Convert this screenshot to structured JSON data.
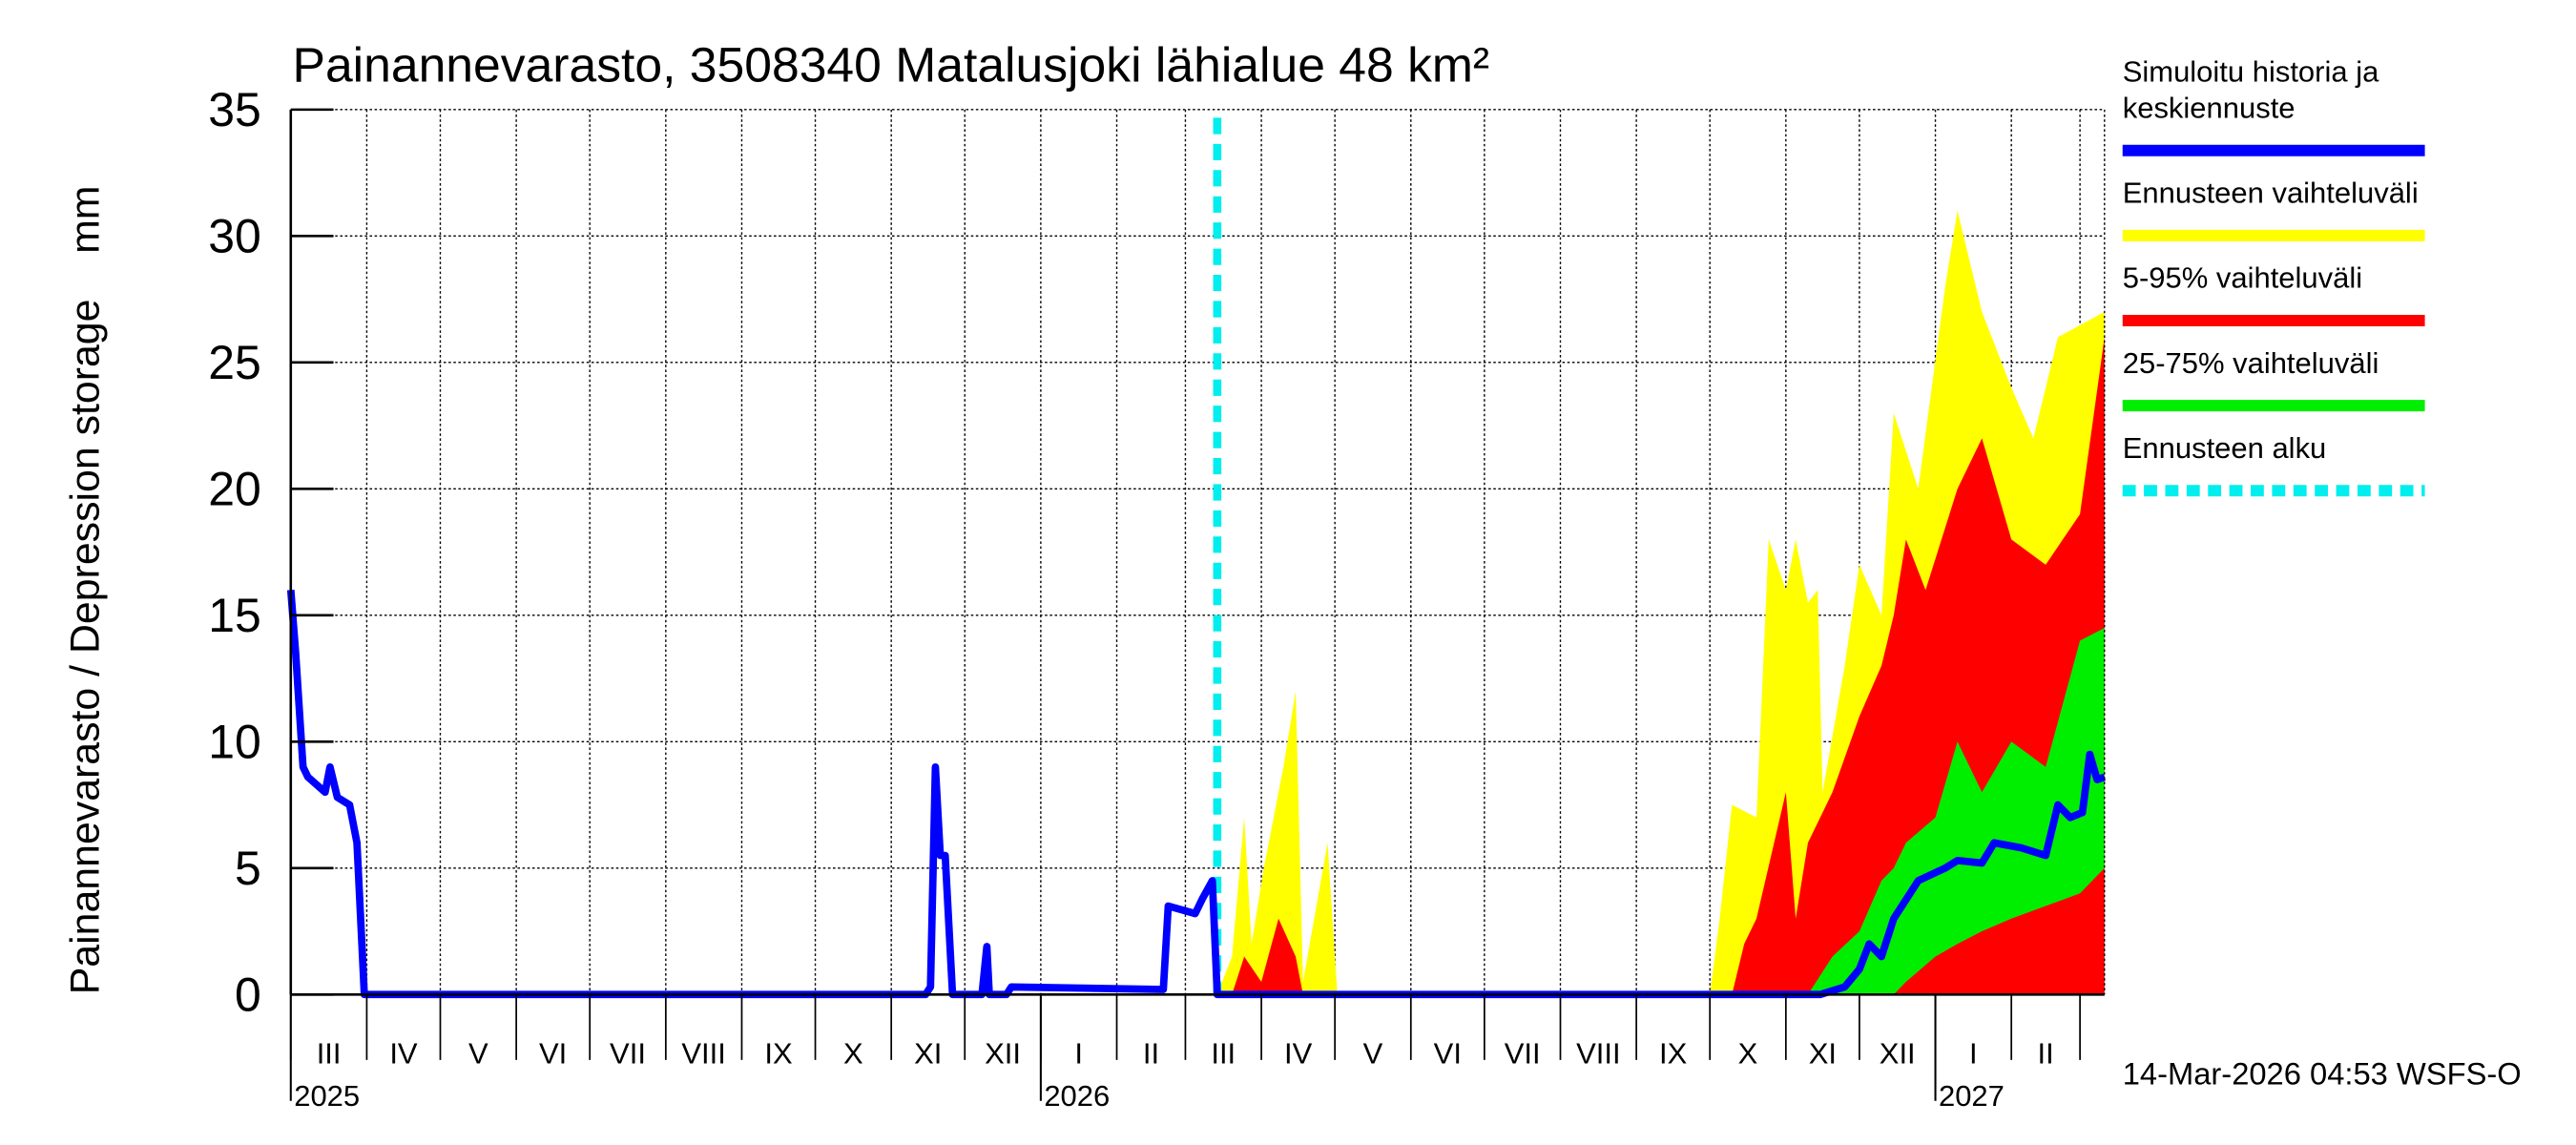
{
  "chart_data": {
    "type": "area",
    "title": "Painannevarasto, 3508340 Matalusjoki lähialue 48 km²",
    "ylabel": "Painannevarasto / Depression storage    mm",
    "ylim": [
      0,
      35
    ],
    "yticks": [
      0,
      5,
      10,
      15,
      20,
      25,
      30,
      35
    ],
    "xlim": [
      "2025-03-01",
      "2027-03-11"
    ],
    "grid": true,
    "legend_position": "right",
    "month_ticks": [
      {
        "date": "2025-03-01",
        "label": "III"
      },
      {
        "date": "2025-04-01",
        "label": "IV"
      },
      {
        "date": "2025-05-01",
        "label": "V"
      },
      {
        "date": "2025-06-01",
        "label": "VI"
      },
      {
        "date": "2025-07-01",
        "label": "VII"
      },
      {
        "date": "2025-08-01",
        "label": "VIII"
      },
      {
        "date": "2025-09-01",
        "label": "IX"
      },
      {
        "date": "2025-10-01",
        "label": "X"
      },
      {
        "date": "2025-11-01",
        "label": "XI"
      },
      {
        "date": "2025-12-01",
        "label": "XII"
      },
      {
        "date": "2026-01-01",
        "label": "I"
      },
      {
        "date": "2026-02-01",
        "label": "II"
      },
      {
        "date": "2026-03-01",
        "label": "III"
      },
      {
        "date": "2026-04-01",
        "label": "IV"
      },
      {
        "date": "2026-05-01",
        "label": "V"
      },
      {
        "date": "2026-06-01",
        "label": "VI"
      },
      {
        "date": "2026-07-01",
        "label": "VII"
      },
      {
        "date": "2026-08-01",
        "label": "VIII"
      },
      {
        "date": "2026-09-01",
        "label": "IX"
      },
      {
        "date": "2026-10-01",
        "label": "X"
      },
      {
        "date": "2026-11-01",
        "label": "XI"
      },
      {
        "date": "2026-12-01",
        "label": "XII"
      },
      {
        "date": "2027-01-01",
        "label": "I"
      },
      {
        "date": "2027-02-01",
        "label": "II"
      },
      {
        "date": "2027-03-01",
        "label": ""
      }
    ],
    "year_labels": [
      {
        "date": "2025-03-01",
        "label": "2025"
      },
      {
        "date": "2026-01-01",
        "label": "2026"
      },
      {
        "date": "2027-01-01",
        "label": "2027"
      }
    ],
    "forecast_start": "2026-03-14",
    "colors": {
      "median": "#0000ff",
      "range": "#ffff00",
      "p5_95": "#ff0000",
      "p25_75": "#00ee00",
      "forecast_start": "#00eeee"
    },
    "series": [
      {
        "name": "Ennusteen vaihteluväli",
        "kind": "band",
        "color": "#ffff00",
        "points": [
          [
            "2026-03-14",
            0,
            0
          ],
          [
            "2026-03-20",
            0,
            1.5
          ],
          [
            "2026-03-25",
            0,
            7
          ],
          [
            "2026-03-28",
            0,
            2
          ],
          [
            "2026-04-02",
            0,
            5
          ],
          [
            "2026-04-10",
            0,
            9
          ],
          [
            "2026-04-15",
            0,
            12
          ],
          [
            "2026-04-18",
            0,
            0.5
          ],
          [
            "2026-04-28",
            0,
            6
          ],
          [
            "2026-05-02",
            0,
            0
          ],
          [
            "2026-10-01",
            0,
            0
          ],
          [
            "2026-10-05",
            0,
            3
          ],
          [
            "2026-10-10",
            0,
            7.5
          ],
          [
            "2026-10-20",
            0,
            7
          ],
          [
            "2026-10-25",
            0,
            18
          ],
          [
            "2026-11-01",
            0,
            16
          ],
          [
            "2026-11-05",
            0,
            18
          ],
          [
            "2026-11-10",
            0,
            15.5
          ],
          [
            "2026-11-14",
            0,
            16
          ],
          [
            "2026-11-16",
            0,
            8
          ],
          [
            "2026-11-25",
            0,
            13
          ],
          [
            "2026-12-01",
            0,
            17
          ],
          [
            "2026-12-10",
            0,
            15
          ],
          [
            "2026-12-15",
            0,
            23
          ],
          [
            "2026-12-25",
            0,
            20
          ],
          [
            "2027-01-05",
            0,
            28
          ],
          [
            "2027-01-10",
            0,
            31
          ],
          [
            "2027-01-20",
            0,
            27
          ],
          [
            "2027-02-01",
            0,
            24
          ],
          [
            "2027-02-10",
            0,
            22
          ],
          [
            "2027-02-20",
            0,
            26
          ],
          [
            "2027-03-11",
            0,
            27
          ]
        ]
      },
      {
        "name": "5-95% vaihteluväli",
        "kind": "band",
        "color": "#ff0000",
        "points": [
          [
            "2026-03-20",
            0,
            0
          ],
          [
            "2026-03-25",
            0,
            1.5
          ],
          [
            "2026-04-01",
            0,
            0.5
          ],
          [
            "2026-04-08",
            0,
            3
          ],
          [
            "2026-04-15",
            0,
            1.5
          ],
          [
            "2026-04-18",
            0,
            0
          ],
          [
            "2026-10-10",
            0,
            0
          ],
          [
            "2026-10-15",
            0,
            2
          ],
          [
            "2026-10-20",
            0,
            3
          ],
          [
            "2026-11-01",
            0,
            8
          ],
          [
            "2026-11-05",
            0,
            3
          ],
          [
            "2026-11-10",
            0,
            6
          ],
          [
            "2026-11-20",
            0,
            8
          ],
          [
            "2026-12-01",
            0,
            11
          ],
          [
            "2026-12-10",
            0,
            13
          ],
          [
            "2026-12-15",
            0,
            15
          ],
          [
            "2026-12-20",
            0,
            18
          ],
          [
            "2026-12-28",
            0,
            16
          ],
          [
            "2027-01-10",
            0,
            20
          ],
          [
            "2027-01-20",
            0,
            22
          ],
          [
            "2027-02-01",
            0,
            18
          ],
          [
            "2027-02-15",
            0,
            17
          ],
          [
            "2027-03-01",
            0,
            19
          ],
          [
            "2027-03-11",
            0,
            26
          ]
        ]
      },
      {
        "name": "25-75% vaihteluväli",
        "kind": "band",
        "color": "#00ee00",
        "points": [
          [
            "2026-11-10",
            0,
            0
          ],
          [
            "2026-11-20",
            0,
            1.5
          ],
          [
            "2026-12-01",
            0,
            2.5
          ],
          [
            "2026-12-10",
            0,
            4.5
          ],
          [
            "2026-12-15",
            0,
            5
          ],
          [
            "2026-12-20",
            0.5,
            6
          ],
          [
            "2027-01-01",
            1.5,
            7
          ],
          [
            "2027-01-10",
            2,
            10
          ],
          [
            "2027-01-20",
            2.5,
            8
          ],
          [
            "2027-02-01",
            3,
            10
          ],
          [
            "2027-02-15",
            3.5,
            9
          ],
          [
            "2027-03-01",
            4,
            14
          ],
          [
            "2027-03-11",
            5,
            14.5
          ]
        ]
      },
      {
        "name": "Simuloitu historia ja keskiennuste",
        "kind": "line",
        "color": "#0000ff",
        "points": [
          [
            "2025-03-01",
            16
          ],
          [
            "2025-03-03",
            13.5
          ],
          [
            "2025-03-06",
            9
          ],
          [
            "2025-03-08",
            8.6
          ],
          [
            "2025-03-15",
            8
          ],
          [
            "2025-03-17",
            9
          ],
          [
            "2025-03-20",
            7.8
          ],
          [
            "2025-03-25",
            7.5
          ],
          [
            "2025-03-28",
            6
          ],
          [
            "2025-03-31",
            0
          ],
          [
            "2025-11-15",
            0
          ],
          [
            "2025-11-17",
            0.3
          ],
          [
            "2025-11-19",
            9
          ],
          [
            "2025-11-21",
            5.5
          ],
          [
            "2025-11-23",
            5.5
          ],
          [
            "2025-11-26",
            0
          ],
          [
            "2025-12-08",
            0
          ],
          [
            "2025-12-10",
            1.9
          ],
          [
            "2025-12-11",
            0
          ],
          [
            "2025-12-18",
            0
          ],
          [
            "2025-12-20",
            0.3
          ],
          [
            "2026-02-20",
            0.2
          ],
          [
            "2026-02-22",
            3.5
          ],
          [
            "2026-03-05",
            3.2
          ],
          [
            "2026-03-08",
            3.8
          ],
          [
            "2026-03-12",
            4.5
          ],
          [
            "2026-03-14",
            0
          ],
          [
            "2026-11-15",
            0
          ],
          [
            "2026-11-25",
            0.3
          ],
          [
            "2026-12-01",
            1
          ],
          [
            "2026-12-05",
            2
          ],
          [
            "2026-12-10",
            1.5
          ],
          [
            "2026-12-15",
            3
          ],
          [
            "2026-12-25",
            4.5
          ],
          [
            "2027-01-05",
            5
          ],
          [
            "2027-01-10",
            5.3
          ],
          [
            "2027-01-20",
            5.2
          ],
          [
            "2027-01-25",
            6
          ],
          [
            "2027-02-05",
            5.8
          ],
          [
            "2027-02-15",
            5.5
          ],
          [
            "2027-02-20",
            7.5
          ],
          [
            "2027-02-25",
            7
          ],
          [
            "2027-03-02",
            7.2
          ],
          [
            "2027-03-05",
            9.5
          ],
          [
            "2027-03-08",
            8.5
          ],
          [
            "2027-03-11",
            8.6
          ]
        ]
      }
    ]
  },
  "legend": [
    {
      "label_lines": [
        "Simuloitu historia ja",
        "keskiennuste"
      ],
      "color": "#0000ff",
      "style": "solid"
    },
    {
      "label_lines": [
        "Ennusteen vaihteluväli"
      ],
      "color": "#ffff00",
      "style": "solid"
    },
    {
      "label_lines": [
        "5-95% vaihteluväli"
      ],
      "color": "#ff0000",
      "style": "solid"
    },
    {
      "label_lines": [
        "25-75% vaihteluväli"
      ],
      "color": "#00ee00",
      "style": "solid"
    },
    {
      "label_lines": [
        "Ennusteen alku"
      ],
      "color": "#00eeee",
      "style": "dashed"
    }
  ],
  "footer": "14-Mar-2026 04:53 WSFS-O"
}
